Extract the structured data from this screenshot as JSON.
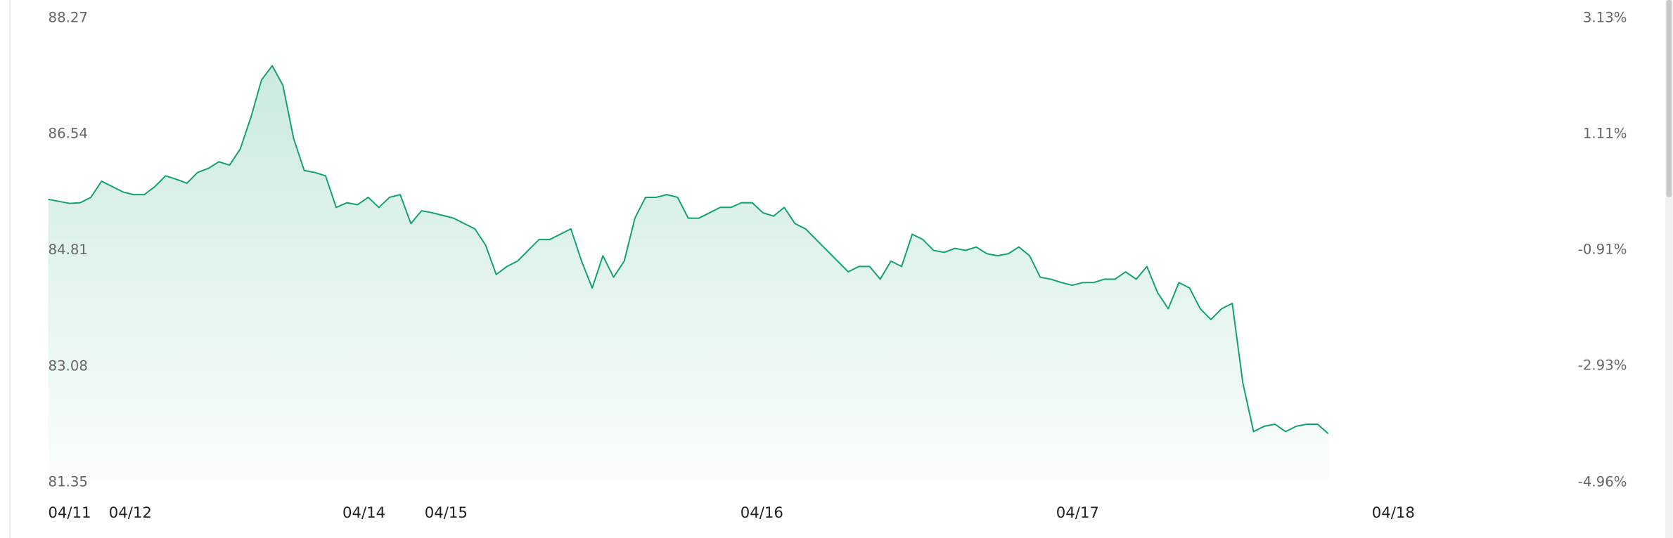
{
  "chart_data": {
    "type": "area",
    "x": [
      0,
      1,
      2,
      3,
      4,
      5,
      6,
      7,
      8,
      9,
      10,
      11,
      12,
      13,
      14,
      15,
      16,
      17,
      18,
      19,
      20,
      21,
      22,
      23,
      24,
      25,
      26,
      27,
      28,
      29,
      30,
      31,
      32,
      33,
      34,
      35,
      36,
      37,
      38,
      39,
      40,
      41,
      42,
      43,
      44,
      45,
      46,
      47,
      48,
      49,
      50,
      51,
      52,
      53,
      54,
      55,
      56,
      57,
      58,
      59,
      60,
      61,
      62,
      63,
      64,
      65,
      66,
      67,
      68,
      69,
      70,
      71,
      72,
      73,
      74,
      75,
      76,
      77,
      78,
      79,
      80,
      81,
      82,
      83,
      84,
      85,
      86,
      87,
      88,
      89,
      90,
      91,
      92,
      93,
      94,
      95,
      96,
      97,
      98,
      99,
      100,
      101,
      102,
      103,
      104,
      105,
      106,
      107,
      108,
      109,
      110,
      111,
      112,
      113,
      114,
      115,
      116,
      117,
      118,
      119,
      120
    ],
    "values": [
      85.57,
      85.54,
      85.51,
      85.52,
      85.6,
      85.84,
      85.76,
      85.68,
      85.64,
      85.64,
      85.76,
      85.92,
      85.87,
      85.81,
      85.97,
      86.03,
      86.13,
      86.08,
      86.32,
      86.79,
      87.35,
      87.56,
      87.27,
      86.48,
      86.0,
      85.97,
      85.92,
      85.45,
      85.52,
      85.49,
      85.6,
      85.45,
      85.6,
      85.64,
      85.21,
      85.4,
      85.37,
      85.33,
      85.29,
      85.21,
      85.13,
      84.89,
      84.45,
      84.57,
      84.65,
      84.81,
      84.97,
      84.97,
      85.05,
      85.13,
      84.65,
      84.25,
      84.73,
      84.41,
      84.65,
      85.29,
      85.6,
      85.6,
      85.64,
      85.6,
      85.29,
      85.29,
      85.37,
      85.45,
      85.45,
      85.52,
      85.52,
      85.37,
      85.32,
      85.45,
      85.21,
      85.13,
      84.97,
      84.81,
      84.65,
      84.49,
      84.57,
      84.57,
      84.38,
      84.65,
      84.57,
      85.05,
      84.97,
      84.81,
      84.78,
      84.84,
      84.81,
      84.86,
      84.76,
      84.73,
      84.76,
      84.86,
      84.73,
      84.41,
      84.38,
      84.33,
      84.29,
      84.33,
      84.33,
      84.38,
      84.38,
      84.49,
      84.38,
      84.57,
      84.18,
      83.94,
      84.33,
      84.25,
      83.94,
      83.78,
      83.94,
      84.02,
      82.83,
      82.11,
      82.19,
      82.22,
      82.11,
      82.19,
      82.22,
      82.22,
      82.08
    ],
    "color": "#12a06e",
    "xlim": [
      0,
      148
    ],
    "xticks": [
      {
        "value": 2,
        "label": "04/11"
      },
      {
        "value": 7.7,
        "label": "04/12"
      },
      {
        "value": 29.6,
        "label": "04/14"
      },
      {
        "value": 37.3,
        "label": "04/15"
      },
      {
        "value": 66.9,
        "label": "04/16"
      },
      {
        "value": 96.5,
        "label": "04/17"
      },
      {
        "value": 126.1,
        "label": "04/18"
      }
    ],
    "ylim": [
      81.35,
      88.27
    ],
    "yticks": [
      88.27,
      86.54,
      84.81,
      83.08,
      81.35
    ],
    "y2lim": [
      -4.96,
      3.13
    ],
    "y2ticks": [
      {
        "value": 3.13,
        "label": "3.13%"
      },
      {
        "value": 1.11,
        "label": "1.11%"
      },
      {
        "value": -0.91,
        "label": "-0.91%"
      },
      {
        "value": -2.93,
        "label": "-2.93%"
      },
      {
        "value": -4.96,
        "label": "-4.96%"
      }
    ],
    "grid": false
  }
}
